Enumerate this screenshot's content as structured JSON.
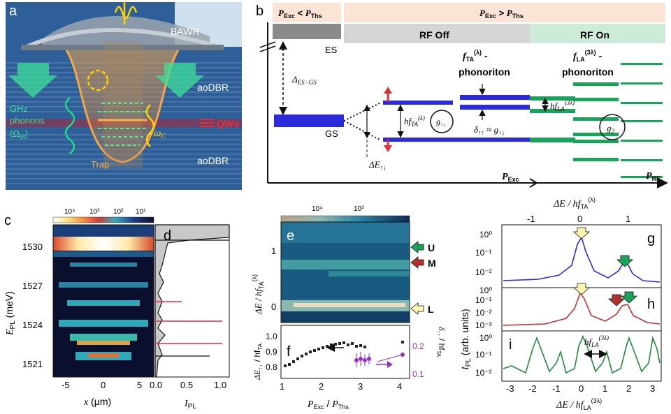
{
  "figure": {
    "panel_a": {
      "letter": "a",
      "bawr": "BAWR",
      "ao_top": "aoDBR",
      "ao_bot": "aoDBR",
      "qws": "QWs",
      "ghz_1": "GHz",
      "ghz_2": "phonons",
      "ghz_3": "(Ω",
      "ghz_sub": "M",
      "ghz_close": ")",
      "omega_c": "ω",
      "omega_c_sub": "C",
      "trap": "Trap",
      "colors": {
        "sky": "#cfe0ee",
        "blue": "#3a6ea8",
        "accent_red": "#e0303a",
        "accent_yellow": "#ffd400",
        "accent_green": "#20d98a"
      }
    },
    "panel_b": {
      "letter": "b",
      "left_hdr_a": "P",
      "left_hdr_a_sub": "Exc",
      "left_hdr_lt": " < ",
      "left_hdr_b": "P",
      "left_hdr_b_sub": "Ths",
      "right_hdr_a": "P",
      "right_hdr_a_sub": "Exc",
      "right_hdr_gt": " > ",
      "right_hdr_b": "P",
      "right_hdr_b_sub": "Ths",
      "rf_off": "RF Off",
      "rf_on": "RF On",
      "es": "ES",
      "gs": "GS",
      "delta": "Δ",
      "delta_sub": "ES−GS",
      "hf_ta": "hf",
      "hf_ta_sub": "TA",
      "hf_ta_sup": "(λ)",
      "g_updown": "g",
      "g_updown_sub": "↑↓",
      "f_ta": "f",
      "f_ta_sub": "TA",
      "f_ta_sup": "(λ)",
      "f_ta_dash": " -",
      "phonoriton_1": "phonoriton",
      "delta_uu": "δ",
      "delta_uu_sub": "↑↑",
      "approx": " ≈ g",
      "approx_sub": "↑↓",
      "f_la": "f",
      "f_la_sub": "LA",
      "f_la_sup": "(3λ)",
      "f_la_dash": " -",
      "phonoriton_2": "phonoriton",
      "hf_la": "hf",
      "hf_la_sub": "LA",
      "hf_la_sup": "(3λ)",
      "g2": "g",
      "g2_sub": "2",
      "de": "ΔE",
      "de_sub": "↑↓",
      "p_exc": "P",
      "p_exc_sub": "Exc",
      "p_rf": "P",
      "p_rf_sub": "RF",
      "colors": {
        "blue": "#2b2bdc",
        "green": "#1aa35a",
        "gray": "#8a8a8a",
        "peach": "#fbe3d6",
        "mint": "#cdebd9"
      }
    },
    "panel_c": {
      "letter": "c",
      "cbar_ticks": [
        "10⁴",
        "10³",
        "10²",
        "10¹"
      ],
      "yticks": [
        "1530",
        "1527",
        "1524",
        "1521"
      ],
      "xticks": [
        "-5",
        "0",
        "5"
      ],
      "ylabel": "E",
      "ylabel_sub": "PL",
      "ylabel_unit": " (meV)",
      "xlabel": "x",
      "xlabel_unit": " (μm)"
    },
    "panel_d": {
      "letter": "d",
      "xticks": [
        "0.0",
        "0.5",
        "1.0"
      ],
      "xlabel": "I",
      "xlabel_sub": "PL"
    },
    "panel_e": {
      "letter": "e",
      "cbar_ticks": [
        "10⁴",
        "10³"
      ],
      "yticks": [
        "1",
        "0"
      ],
      "ylabel": "ΔE / hf",
      "ylabel_sub": "TA",
      "ylabel_sup": "(λ)",
      "marker_u": "U",
      "marker_m": "M",
      "marker_l": "L"
    },
    "panel_f": {
      "letter": "f",
      "yticks_left": [
        "1.0",
        "0.9",
        "0.8"
      ],
      "yticks_right": [
        "0.2",
        "0.1"
      ],
      "xticks": [
        "1",
        "2",
        "3",
        "4"
      ],
      "ylabel_left": "ΔE",
      "ylabel_left_sub": "↑↓",
      "ylabel_left_rest": " / hf",
      "ylabel_left_sub2": "TA",
      "ylabel_right": "δ",
      "ylabel_right_sub": "↑↑",
      "ylabel_right_rest": " / hf",
      "ylabel_right_sub2": "TA",
      "xlabel_a": "P",
      "xlabel_a_sub": "Exc",
      "xlabel_sep": " / ",
      "xlabel_b": "P",
      "xlabel_b_sub": "Ths"
    },
    "panel_g": {
      "letter": "g",
      "top_xticks": [
        "-1",
        "0",
        "1"
      ],
      "top_xlabel": "ΔE / hf",
      "top_xlabel_sub": "TA",
      "top_xlabel_sup": "(λ)",
      "yticks": [
        "10⁰",
        "10⁻¹",
        "10⁻²"
      ]
    },
    "panel_h": {
      "letter": "h",
      "yticks": [
        "10⁰",
        "10⁻¹",
        "10⁻²",
        "10⁻³"
      ]
    },
    "panel_i": {
      "letter": "i",
      "yticks": [
        "10⁰",
        "10⁻¹",
        "10⁻²"
      ],
      "xticks": [
        "-3",
        "-2",
        "-1",
        "0",
        "1",
        "2",
        "3"
      ],
      "xlabel": "ΔE / hf",
      "xlabel_sub": "LA",
      "xlabel_sup": "(3λ)",
      "annot": "hf",
      "annot_sub": "LA",
      "annot_sup": "(3λ)",
      "ylabel": "I",
      "ylabel_sub": "PL",
      "ylabel_unit": " (arb. units)"
    }
  }
}
